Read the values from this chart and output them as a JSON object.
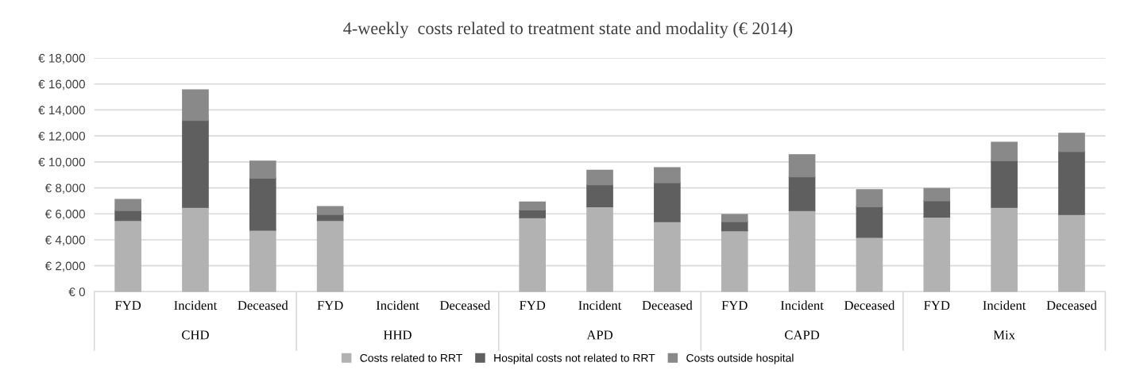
{
  "chart_data": {
    "type": "bar",
    "stacked": true,
    "title": "4-weekly  costs related to treatment state and modality (€ 2014)",
    "categories": [
      "FYD",
      "Incident",
      "Deceased",
      "FYD",
      "Incident",
      "Deceased",
      "FYD",
      "Incident",
      "Deceased",
      "FYD",
      "Incident",
      "Deceased",
      "FYD",
      "Incident",
      "Deceased"
    ],
    "annotations": [
      "CHD",
      "HHD",
      "APD",
      "CAPD",
      "Mix"
    ],
    "series": [
      {
        "name": "Costs related to RRT",
        "color": "#b2b2b2",
        "values": [
          5500,
          6500,
          4750,
          5500,
          null,
          null,
          5700,
          6550,
          5400,
          4700,
          6250,
          4200,
          5750,
          6500,
          5950
        ]
      },
      {
        "name": "Hospital costs not related to RRT",
        "color": "#5f5f5f",
        "values": [
          750,
          6700,
          4000,
          450,
          null,
          null,
          600,
          1700,
          3000,
          700,
          2600,
          2350,
          1250,
          3600,
          4850
        ]
      },
      {
        "name": "Costs outside hospital",
        "color": "#898989",
        "values": [
          850,
          2350,
          1300,
          600,
          null,
          null,
          600,
          1100,
          1150,
          550,
          1700,
          1300,
          950,
          1400,
          1400
        ]
      }
    ],
    "ylim": [
      0,
      18000
    ],
    "yticks": [
      {
        "value": 0,
        "label": "€ 0"
      },
      {
        "value": 2000,
        "label": "€ 2,000"
      },
      {
        "value": 4000,
        "label": "€ 4,000"
      },
      {
        "value": 6000,
        "label": "€ 6,000"
      },
      {
        "value": 8000,
        "label": "€ 8,000"
      },
      {
        "value": 10000,
        "label": "€ 10,000"
      },
      {
        "value": 12000,
        "label": "€ 12,000"
      },
      {
        "value": 14000,
        "label": "€ 14,000"
      },
      {
        "value": 16000,
        "label": "€ 16,000"
      },
      {
        "value": 18000,
        "label": "€ 18,000"
      }
    ],
    "grid": "y",
    "legend": "bottom"
  }
}
